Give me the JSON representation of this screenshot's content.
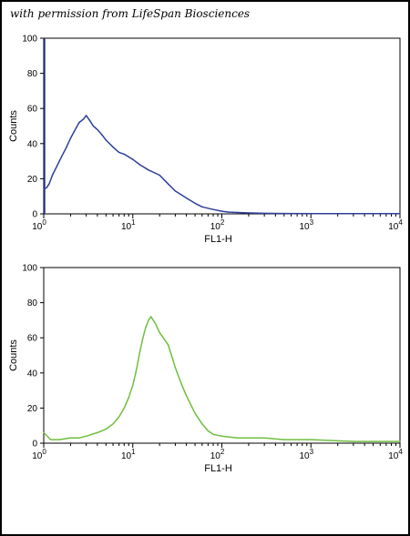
{
  "watermark": "with permission from LifeSpan Biosciences",
  "chart_data": [
    {
      "type": "line",
      "xscale": "log",
      "xlim": [
        1,
        10000
      ],
      "ylim": [
        0,
        100
      ],
      "xlabel": "FL1-H",
      "ylabel": "Counts",
      "yticks": [
        0,
        20,
        40,
        60,
        80,
        100
      ],
      "xticks": [
        1,
        10,
        100,
        1000,
        10000
      ],
      "color": "#2e3f9a",
      "series": [
        {
          "x": [
            1,
            1.08,
            1.15,
            1.25,
            1.4,
            1.6,
            1.8,
            2.0,
            2.2,
            2.5,
            2.8,
            3.0,
            3.3,
            3.6,
            4.0,
            4.5,
            5.0,
            6.0,
            7.0,
            8.0,
            10,
            12,
            15,
            20,
            25,
            30,
            40,
            50,
            60,
            80,
            100,
            120,
            150,
            200,
            300,
            500,
            1000,
            3000,
            10000
          ],
          "y": [
            14,
            15,
            17,
            22,
            27,
            33,
            38,
            43,
            47,
            52,
            54,
            56,
            53,
            50,
            48,
            45,
            42,
            38,
            35,
            34,
            31,
            28,
            25,
            22,
            17,
            13,
            9,
            6,
            4,
            2.5,
            1.5,
            1,
            0.8,
            0.5,
            0.3,
            0.2,
            0.1,
            0.1,
            0.1
          ]
        }
      ]
    },
    {
      "type": "line",
      "xscale": "log",
      "xlim": [
        1,
        10000
      ],
      "ylim": [
        0,
        100
      ],
      "xlabel": "FL1-H",
      "ylabel": "Counts",
      "yticks": [
        0,
        20,
        40,
        60,
        80,
        100
      ],
      "xticks": [
        1,
        10,
        100,
        1000,
        10000
      ],
      "color": "#6fbf3d",
      "series": [
        {
          "x": [
            1,
            1.2,
            1.5,
            2,
            2.5,
            3,
            4,
            5,
            6,
            7,
            8,
            9,
            10,
            11,
            12,
            13,
            14,
            15,
            16,
            18,
            20,
            22,
            25,
            28,
            30,
            35,
            40,
            50,
            60,
            70,
            80,
            100,
            150,
            200,
            300,
            500,
            1000,
            3000,
            10000
          ],
          "y": [
            6,
            2,
            2,
            3,
            3,
            4,
            6,
            8,
            11,
            15,
            20,
            26,
            33,
            42,
            52,
            60,
            66,
            70,
            72,
            68,
            63,
            60,
            56,
            48,
            43,
            34,
            27,
            17,
            11,
            7,
            5,
            4,
            3,
            3,
            3,
            2,
            2,
            1,
            1
          ]
        }
      ]
    }
  ]
}
